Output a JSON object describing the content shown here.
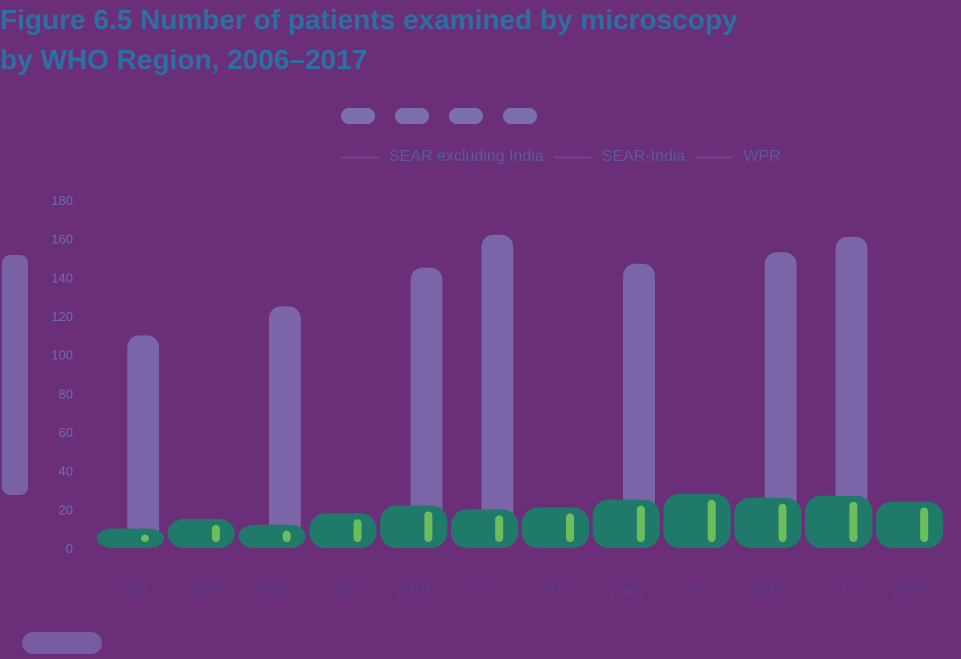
{
  "figure": {
    "title_line1": "Figure 6.5 Number of patients examined by microscopy",
    "title_line2": "by WHO Region, 2006–2017",
    "footnote": "",
    "legend": {
      "swatch_labels": [
        "",
        "",
        "",
        ""
      ],
      "line_labels": [
        "SEAR excluding India",
        "SEAR-India",
        "WPR"
      ]
    }
  },
  "colors": {
    "background": "#6a2f78",
    "bar_light": "#7c6fb0",
    "bar_dark": "#1f7a6a",
    "bar_highlight": "#7fd05a",
    "text_blue": "#2d6fa3"
  },
  "chart_data": {
    "type": "bar",
    "title": "Figure 6.5 Number of patients examined by microscopy by WHO Region, 2006–2017",
    "xlabel": "",
    "ylabel": "",
    "ylim": [
      0,
      180
    ],
    "y_ticks": [
      0,
      20,
      40,
      60,
      80,
      100,
      120,
      140,
      160,
      180
    ],
    "categories": [
      "2006",
      "2007",
      "2008",
      "2009",
      "2010",
      "2011",
      "2012",
      "2013",
      "2014",
      "2015",
      "2016",
      "2017"
    ],
    "series": [
      {
        "name": "",
        "values": [
          110,
          0,
          125,
          0,
          145,
          162,
          0,
          147,
          0,
          153,
          161,
          0
        ]
      },
      {
        "name": "",
        "values": [
          10,
          15,
          12,
          18,
          22,
          20,
          21,
          25,
          28,
          26,
          27,
          24
        ]
      }
    ],
    "grid": false,
    "legend_position": "top-right"
  }
}
